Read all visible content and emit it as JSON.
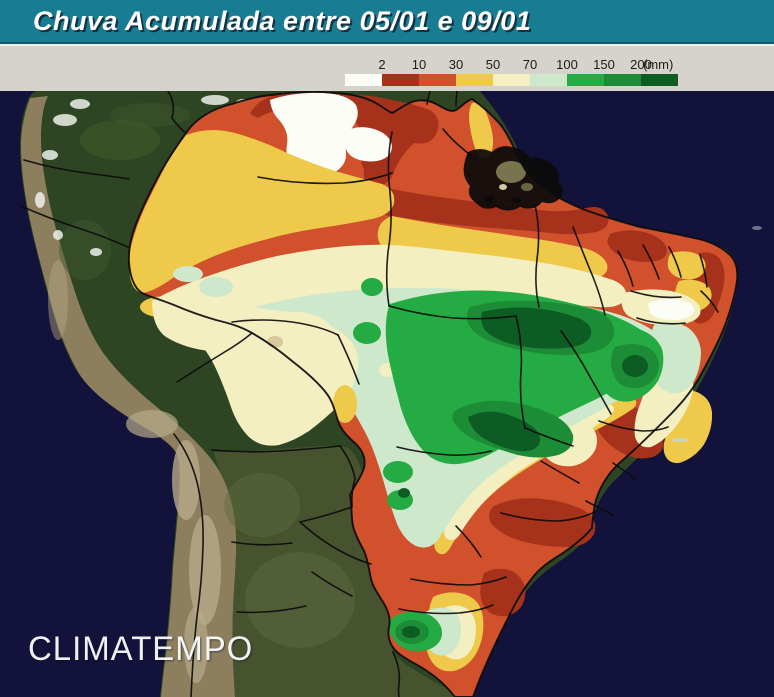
{
  "title": {
    "text": "Chuva Acumulada entre 05/01 e 09/01"
  },
  "legend": {
    "tick_labels": [
      "2",
      "10",
      "30",
      "50",
      "70",
      "100",
      "150",
      "200"
    ],
    "unit": "(mm)",
    "segment_colors": [
      "#fdfdf8",
      "#a6321c",
      "#d0512b",
      "#eec94a",
      "#f4efc1",
      "#cde8ca",
      "#25ab43",
      "#1d8c36",
      "#0d5c24"
    ]
  },
  "map": {
    "watermark": "CLIMATEMPO"
  },
  "palette": {
    "titlebar": "#187d93",
    "band_bg": "#d6d2cc",
    "ocean": "#12123b",
    "forest": "#2e4523",
    "forest_light": "#415c2e",
    "andes": "#8d7f5e",
    "andes_light": "#b7a98a",
    "plains": "#47532e",
    "plains_light": "#5d6a40",
    "cloud": "#eef0ea",
    "delta_ink": "#0b0b0b",
    "island_tan": "#77744e",
    "island_sand": "#cfc9a0",
    "ocean_speck": "#c8d2da",
    "precip_white": "#fdfdf8",
    "dark_red": "#a6321c",
    "orange_red": "#d0512b",
    "yellow": "#eec94a",
    "cream": "#f4efc1",
    "pale_green": "#cde8ca",
    "green": "#25ab43",
    "green_med": "#1d8c36",
    "green_dark": "#0d5c24",
    "tan_dot": "#d9c89a",
    "border_ink": "#0c0c0c"
  }
}
